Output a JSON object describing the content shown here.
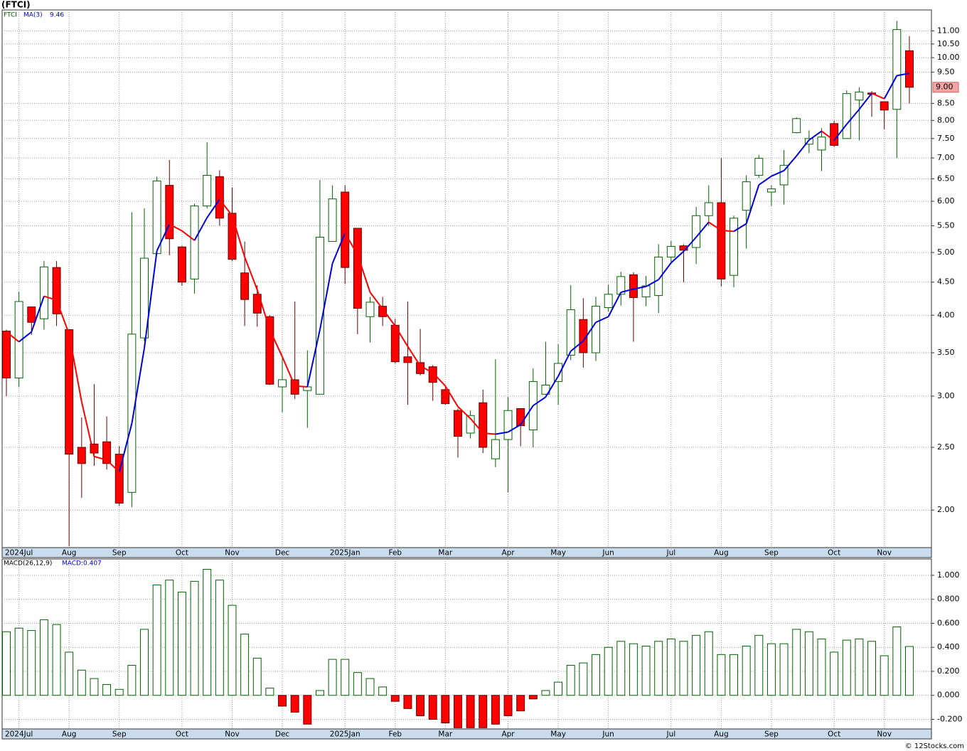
{
  "chart_data": [
    {
      "type": "candlestick",
      "title": "(FTCI)",
      "log_scale": true,
      "grid": true,
      "xlim": [
        -0.34,
        73.76
      ],
      "ylim": [
        1.75,
        11.85
      ],
      "yticks": [
        {
          "value": 2,
          "label": "2.00"
        },
        {
          "value": 2.5,
          "label": "2.50"
        },
        {
          "value": 3,
          "label": "3.00"
        },
        {
          "value": 3.5,
          "label": "3.50"
        },
        {
          "value": 4,
          "label": "4.00"
        },
        {
          "value": 4.5,
          "label": "4.50"
        },
        {
          "value": 5,
          "label": "5.00"
        },
        {
          "value": 5.5,
          "label": "5.50"
        },
        {
          "value": 6,
          "label": "6.00"
        },
        {
          "value": 6.5,
          "label": "6.50"
        },
        {
          "value": 7,
          "label": "7.00"
        },
        {
          "value": 7.5,
          "label": "7.50"
        },
        {
          "value": 8,
          "label": "8.00"
        },
        {
          "value": 8.5,
          "label": "8.50"
        },
        {
          "value": 9.5,
          "label": "9.50"
        },
        {
          "value": 10,
          "label": "10.00"
        },
        {
          "value": 10.5,
          "label": "10.50"
        },
        {
          "value": 11,
          "label": "11.00"
        }
      ],
      "xticks": [
        {
          "value": 1,
          "label": "2024Jul"
        },
        {
          "value": 5,
          "label": "Aug"
        },
        {
          "value": 9,
          "label": "Sep"
        },
        {
          "value": 14,
          "label": "Oct"
        },
        {
          "value": 18,
          "label": "Nov"
        },
        {
          "value": 22,
          "label": "Dec"
        },
        {
          "value": 27,
          "label": "2025Jan"
        },
        {
          "value": 31,
          "label": "Feb"
        },
        {
          "value": 35,
          "label": "Mar"
        },
        {
          "value": 40,
          "label": "Apr"
        },
        {
          "value": 44,
          "label": "May"
        },
        {
          "value": 48,
          "label": "Jun"
        },
        {
          "value": 53,
          "label": "Jul"
        },
        {
          "value": 57,
          "label": "Aug"
        },
        {
          "value": 61,
          "label": "Sep"
        },
        {
          "value": 66,
          "label": "Oct"
        },
        {
          "value": 70,
          "label": "Nov"
        }
      ],
      "last_price": {
        "value": 9,
        "label": "9.00"
      },
      "series": [
        {
          "name": "FTCI",
          "color": "#006400",
          "up_color": "#006400",
          "down_color": "#ff0000",
          "open": [
            3.78,
            3.2,
            4.12,
            3.95,
            4.74,
            3.8,
            2.5,
            2.53,
            2.55,
            2.44,
            2.13,
            3.69,
            4.98,
            6.35,
            5.1,
            4.55,
            5.9,
            6.55,
            5.75,
            4.65,
            4.31,
            3.98,
            3.1,
            3.18,
            3.06,
            3.02,
            5.2,
            6.2,
            5.45,
            3.98,
            4.13,
            3.86,
            3.45,
            3.38,
            3.33,
            3.07,
            2.85,
            2.63,
            2.93,
            2.4,
            2.57,
            2.87,
            2.66,
            3.02,
            3.16,
            3.47,
            3.94,
            3.5,
            4.11,
            4.31,
            4.62,
            4.27,
            4.29,
            4.92,
            5.12,
            5.09,
            5.7,
            5.97,
            4.61,
            5.81,
            6.58,
            6.2,
            6.36,
            7.66,
            7.35,
            7.2,
            7.91,
            7.5,
            8.6,
            8.82,
            8.55,
            8.32,
            10.25
          ],
          "high": [
            3.8,
            4.35,
            4.12,
            4.85,
            4.85,
            3.8,
            2.78,
            3.13,
            2.79,
            2.51,
            5.77,
            5.85,
            6.55,
            6.95,
            5.12,
            5.95,
            7.4,
            6.7,
            6.3,
            5.2,
            4.45,
            4.0,
            3.45,
            4.2,
            3.53,
            6.47,
            6.35,
            6.35,
            5.45,
            4.27,
            4.27,
            3.95,
            4.2,
            3.81,
            3.35,
            3.11,
            2.87,
            2.85,
            3.07,
            3.42,
            2.99,
            2.87,
            3.31,
            3.64,
            3.61,
            4.45,
            4.25,
            4.27,
            4.46,
            4.67,
            4.66,
            4.6,
            5.15,
            5.21,
            5.15,
            5.88,
            6.35,
            7.0,
            5.7,
            6.58,
            7.08,
            6.35,
            7.2,
            8.09,
            7.72,
            7.78,
            7.99,
            8.9,
            9.0,
            8.88,
            8.55,
            11.4,
            10.8
          ],
          "low": [
            3.0,
            3.1,
            3.73,
            3.8,
            3.85,
            1.76,
            2.09,
            2.34,
            2.31,
            2.03,
            2.02,
            3.65,
            4.95,
            4.95,
            4.44,
            4.32,
            5.85,
            5.5,
            4.85,
            3.85,
            3.84,
            3.12,
            2.83,
            2.97,
            2.68,
            3.02,
            5.2,
            4.47,
            3.74,
            3.63,
            3.85,
            3.37,
            2.91,
            3.23,
            2.95,
            2.91,
            2.41,
            2.58,
            2.45,
            2.33,
            2.13,
            2.51,
            2.5,
            3.01,
            2.91,
            3.41,
            3.32,
            3.4,
            4.05,
            4.14,
            3.64,
            4.13,
            4.03,
            4.8,
            4.5,
            4.8,
            5.5,
            4.43,
            4.42,
            5.07,
            6.52,
            5.9,
            5.93,
            7.64,
            7.12,
            6.68,
            7.28,
            7.5,
            7.45,
            8.1,
            7.75,
            7.0,
            8.5
          ],
          "close": [
            3.2,
            4.2,
            3.9,
            4.75,
            4.02,
            2.44,
            2.36,
            2.45,
            2.36,
            2.05,
            3.74,
            4.9,
            6.45,
            5.25,
            4.5,
            5.9,
            6.58,
            5.65,
            4.88,
            4.23,
            4.03,
            3.13,
            3.18,
            3.02,
            3.1,
            5.28,
            6.05,
            4.74,
            4.1,
            4.19,
            3.98,
            3.39,
            3.38,
            3.25,
            3.15,
            2.92,
            2.6,
            2.8,
            2.5,
            2.57,
            2.85,
            2.7,
            3.16,
            3.12,
            3.37,
            4.08,
            3.5,
            4.13,
            4.31,
            4.59,
            4.26,
            4.44,
            4.92,
            5.11,
            5.04,
            5.7,
            5.97,
            4.55,
            5.65,
            6.43,
            6.99,
            6.27,
            6.82,
            8.05,
            7.5,
            7.54,
            7.32,
            8.8,
            8.85,
            8.78,
            8.3,
            11.05,
            9.0
          ]
        },
        {
          "name": "MA(3)",
          "type": "line",
          "color": "#0000dd",
          "down_color": "#ff0000",
          "values": [
            3.77,
            3.64,
            3.77,
            4.28,
            4.22,
            3.74,
            2.94,
            2.42,
            2.39,
            2.29,
            2.72,
            3.56,
            5.03,
            5.53,
            5.4,
            5.22,
            5.66,
            6.04,
            5.7,
            4.92,
            4.38,
            3.8,
            3.45,
            3.11,
            3.1,
            3.8,
            4.81,
            5.36,
            4.96,
            4.34,
            4.09,
            3.85,
            3.58,
            3.34,
            3.26,
            3.11,
            2.89,
            2.77,
            2.63,
            2.62,
            2.64,
            2.71,
            2.9,
            2.99,
            3.22,
            3.52,
            3.65,
            3.9,
            3.98,
            4.34,
            4.39,
            4.43,
            4.54,
            4.82,
            5.02,
            5.28,
            5.57,
            5.41,
            5.39,
            5.54,
            6.36,
            6.56,
            6.69,
            7.05,
            7.46,
            7.7,
            7.45,
            7.89,
            8.32,
            8.81,
            8.64,
            9.38,
            9.46
          ]
        }
      ]
    },
    {
      "type": "bar",
      "grid": true,
      "xlim": [
        -0.34,
        73.76
      ],
      "ylim": [
        -0.28,
        1.136
      ],
      "yticks": [
        {
          "value": -0.2,
          "label": "-0.200"
        },
        {
          "value": 0,
          "label": "0.000"
        },
        {
          "value": 0.2,
          "label": "0.200"
        },
        {
          "value": 0.4,
          "label": "0.400"
        },
        {
          "value": 0.6,
          "label": "0.600"
        },
        {
          "value": 0.8,
          "label": "0.800"
        },
        {
          "value": 1,
          "label": "1.000"
        }
      ],
      "xticks": [
        {
          "value": 1,
          "label": "2024Jul"
        },
        {
          "value": 5,
          "label": "Aug"
        },
        {
          "value": 9,
          "label": "Sep"
        },
        {
          "value": 14,
          "label": "Oct"
        },
        {
          "value": 18,
          "label": "Nov"
        },
        {
          "value": 22,
          "label": "Dec"
        },
        {
          "value": 27,
          "label": "2025Jan"
        },
        {
          "value": 31,
          "label": "Feb"
        },
        {
          "value": 35,
          "label": "Mar"
        },
        {
          "value": 40,
          "label": "Apr"
        },
        {
          "value": 44,
          "label": "May"
        },
        {
          "value": 48,
          "label": "Jun"
        },
        {
          "value": 53,
          "label": "Jul"
        },
        {
          "value": 57,
          "label": "Aug"
        },
        {
          "value": 61,
          "label": "Sep"
        },
        {
          "value": 66,
          "label": "Oct"
        },
        {
          "value": 70,
          "label": "Nov"
        }
      ],
      "series": [
        {
          "name": "MACD(26,12,9)",
          "last_label": "MACD:0.407",
          "color": "#006400",
          "down_color": "#ff0000",
          "values": [
            0.53,
            0.56,
            0.54,
            0.63,
            0.59,
            0.36,
            0.21,
            0.14,
            0.09,
            0.05,
            0.25,
            0.55,
            0.92,
            0.96,
            0.86,
            0.95,
            1.05,
            0.96,
            0.75,
            0.51,
            0.31,
            0.06,
            -0.09,
            -0.14,
            -0.24,
            0.04,
            0.3,
            0.3,
            0.19,
            0.14,
            0.07,
            -0.05,
            -0.11,
            -0.17,
            -0.2,
            -0.23,
            -0.27,
            -0.27,
            -0.27,
            -0.24,
            -0.17,
            -0.13,
            -0.03,
            0.04,
            0.11,
            0.25,
            0.27,
            0.34,
            0.4,
            0.45,
            0.43,
            0.41,
            0.45,
            0.47,
            0.45,
            0.5,
            0.53,
            0.34,
            0.34,
            0.41,
            0.5,
            0.43,
            0.43,
            0.55,
            0.53,
            0.47,
            0.36,
            0.46,
            0.47,
            0.45,
            0.33,
            0.57,
            0.407
          ]
        }
      ]
    }
  ],
  "footer": "© 12Stocks.com"
}
